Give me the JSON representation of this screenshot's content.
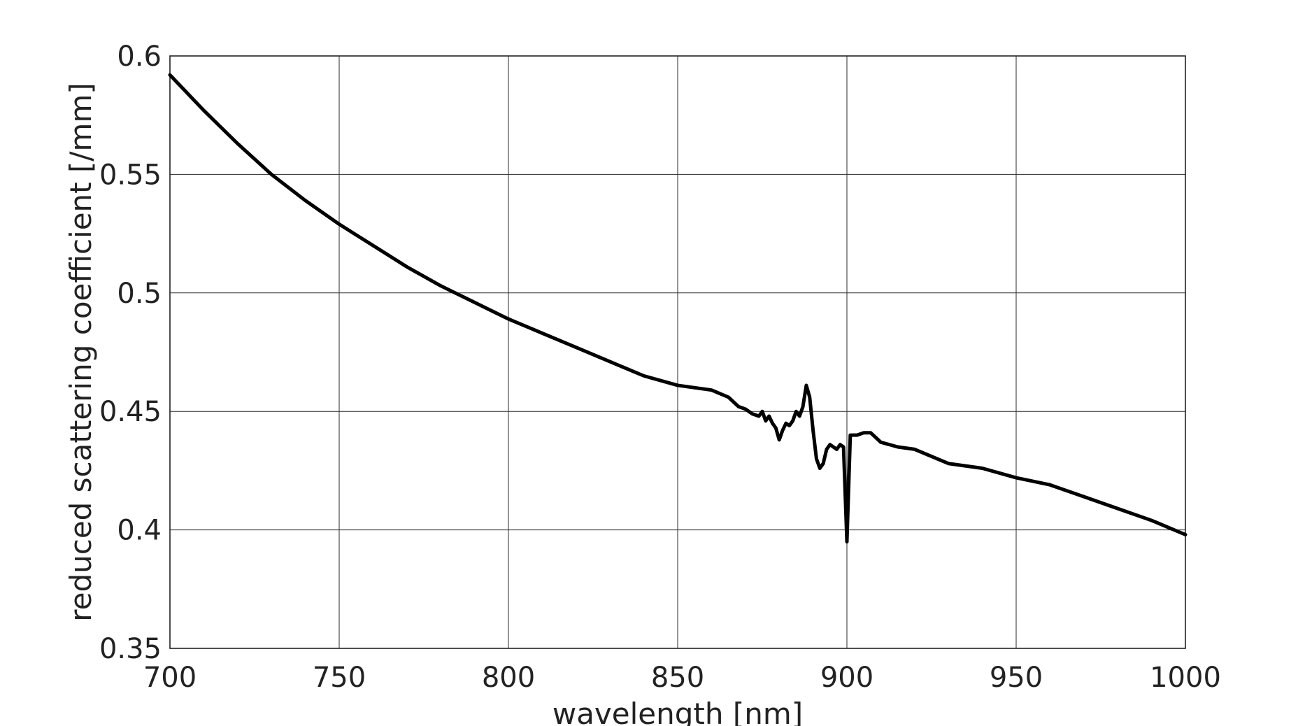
{
  "chart_data": {
    "type": "line",
    "title": "",
    "xlabel": "wavelength [nm]",
    "ylabel": "reduced scattering coefficient [/mm]",
    "xlim": [
      700,
      1000
    ],
    "ylim": [
      0.35,
      0.6
    ],
    "xticks": [
      700,
      750,
      800,
      850,
      900,
      950,
      1000
    ],
    "xtick_labels": [
      "700",
      "750",
      "800",
      "850",
      "900",
      "950",
      "1000"
    ],
    "yticks": [
      0.35,
      0.4,
      0.45,
      0.5,
      0.55,
      0.6
    ],
    "ytick_labels": [
      "0.35",
      "0.4",
      "0.45",
      "0.5",
      "0.55",
      "0.6"
    ],
    "grid": true,
    "legend": "none",
    "line_color": "#000000",
    "series": [
      {
        "x": [
          700,
          710,
          720,
          730,
          740,
          750,
          760,
          770,
          780,
          790,
          800,
          810,
          820,
          830,
          840,
          850,
          855,
          860,
          865,
          868,
          870,
          872,
          874,
          875,
          876,
          877,
          878,
          879,
          880,
          881,
          882,
          883,
          884,
          885,
          886,
          887,
          888,
          889,
          890,
          891,
          892,
          893,
          894,
          895,
          896,
          897,
          898,
          899,
          900,
          901,
          903,
          905,
          907,
          910,
          915,
          920,
          930,
          940,
          950,
          960,
          970,
          980,
          990,
          1000
        ],
        "y": [
          0.592,
          0.577,
          0.563,
          0.55,
          0.539,
          0.529,
          0.52,
          0.511,
          0.503,
          0.496,
          0.489,
          0.483,
          0.477,
          0.471,
          0.465,
          0.461,
          0.46,
          0.459,
          0.456,
          0.452,
          0.451,
          0.449,
          0.448,
          0.45,
          0.446,
          0.448,
          0.445,
          0.443,
          0.438,
          0.442,
          0.445,
          0.444,
          0.446,
          0.45,
          0.448,
          0.452,
          0.461,
          0.456,
          0.442,
          0.43,
          0.426,
          0.428,
          0.434,
          0.436,
          0.435,
          0.434,
          0.436,
          0.435,
          0.395,
          0.44,
          0.44,
          0.441,
          0.441,
          0.437,
          0.435,
          0.434,
          0.428,
          0.426,
          0.422,
          0.419,
          0.414,
          0.409,
          0.404,
          0.398
        ]
      }
    ]
  }
}
